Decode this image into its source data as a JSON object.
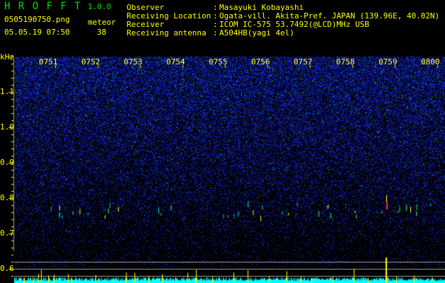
{
  "header": {
    "app_name": "H R O F F T",
    "version": "1.0.0",
    "filename": "0505190750.png",
    "datetime": "05.05.19 07:50",
    "meteor_label": "meteor",
    "meteor_count": "38"
  },
  "info": [
    {
      "label": "Observer",
      "value": "Masayuki Kobayashi"
    },
    {
      "label": "Receiving Location",
      "value": "Ogata-vill. Akita-Pref. JAPAN (139.96E, 40.02N)"
    },
    {
      "label": "Receiver",
      "value": "ICOM IC-575 53.7492(@LCD)MHz USB"
    },
    {
      "label": "Receiving antenna",
      "value": "A504HB(yagi 4el)"
    }
  ],
  "chart_data": {
    "type": "heatmap",
    "ylabel": "kHz",
    "ylim": [
      0.56,
      1.2
    ],
    "yticks": [
      "1.1",
      "1.0",
      "0.9",
      "0.8",
      "0.7",
      "0.6"
    ],
    "xticks": [
      "0751",
      "0752",
      "0753",
      "0754",
      "0755",
      "0756",
      "0757",
      "0758",
      "0759",
      "0800"
    ],
    "echo_band_khz": 0.78,
    "strongest_echo_time": "0759",
    "colors": {
      "background": "#000000",
      "noise": "#1020d0",
      "text": "#ffff00",
      "title": "#00e000",
      "signal_level": "#00ffff",
      "meteor_spike": "#ffff00",
      "grid": "#a0a0a0"
    }
  }
}
